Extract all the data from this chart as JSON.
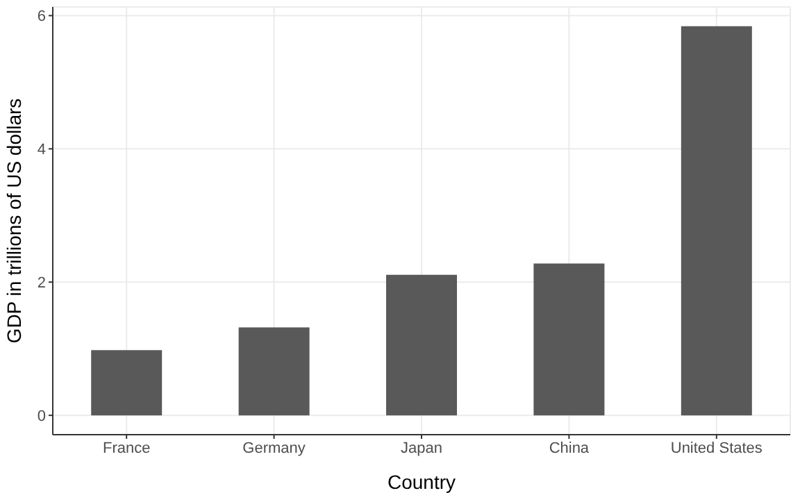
{
  "chart_data": {
    "type": "bar",
    "xlabel": "Country",
    "ylabel": "GDP in trillions of US dollars",
    "categories": [
      "France",
      "Germany",
      "Japan",
      "China",
      "United States"
    ],
    "values": [
      0.98,
      1.32,
      2.11,
      2.28,
      5.84
    ],
    "color": "#595959",
    "ylim": [
      -0.29,
      6.13
    ],
    "yticks": [
      0,
      2,
      4,
      6
    ],
    "grid": true
  }
}
